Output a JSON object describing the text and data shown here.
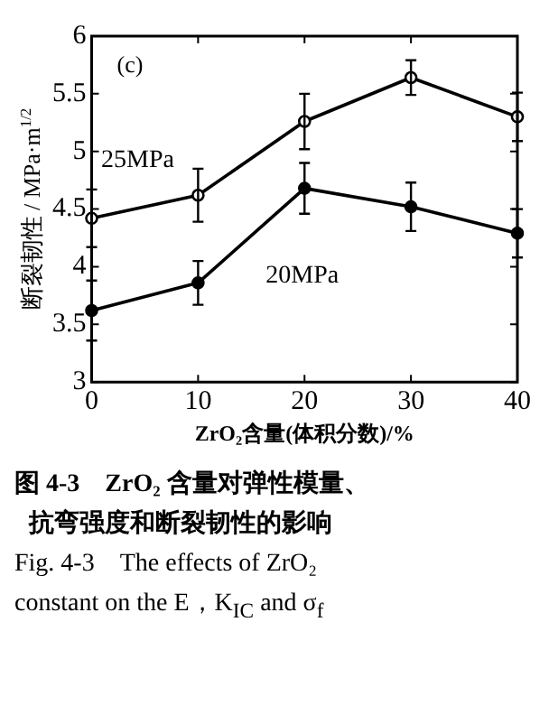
{
  "chart_data": {
    "type": "line",
    "xlabel": "ZrO₂含量(体积分数)/%",
    "ylabel": "断裂韧性 / MPa·m$^{1/2}$",
    "x": [
      0,
      10,
      20,
      30,
      40
    ],
    "series": [
      {
        "name": "25MPa",
        "color": "#000000",
        "values": [
          4.42,
          4.62,
          5.26,
          5.64,
          5.3
        ],
        "errors": [
          0.25,
          0.23,
          0.24,
          0.15,
          0.21
        ]
      },
      {
        "name": "20MPa",
        "color": "#000000",
        "values": [
          3.62,
          3.86,
          4.68,
          4.52,
          4.29
        ],
        "errors": [
          0.26,
          0.19,
          0.22,
          0.21,
          0.21
        ]
      }
    ],
    "xlim": [
      0,
      40
    ],
    "xticks": [
      0,
      10,
      20,
      30,
      40
    ],
    "ylim": [
      3,
      6
    ],
    "yticks": [
      3,
      3.5,
      4,
      4.5,
      5,
      5.5,
      6
    ],
    "grid": false,
    "legend": false,
    "marker": "circle",
    "line_style": "solid",
    "annotations": [
      "(c)",
      "图 4-3　ZrO₂ 含量对弹性模量、",
      "抗弯强度和断裂韧性的影响",
      "Fig. 4-3　The effects of ZrO₂",
      "constant on the E，K$_{IC}$ and σ$_{f}$"
    ]
  }
}
